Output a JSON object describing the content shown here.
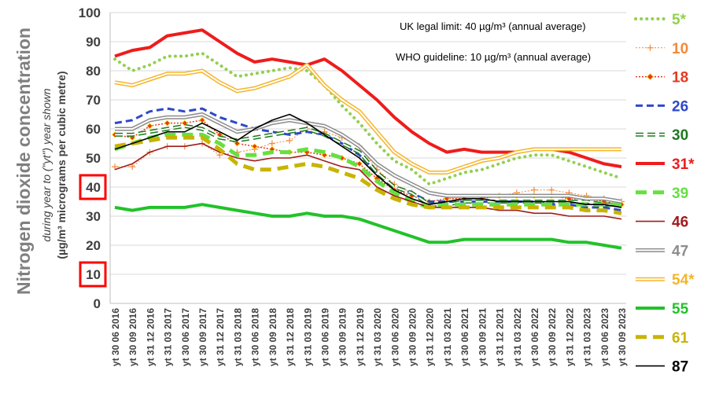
{
  "chart_data": {
    "type": "line",
    "ylabel_main": "Nitrogen dioxide concentration",
    "ylabel_sub1": "during year to (\"yt\") year shown",
    "ylabel_sub2": "(µg/m³ micrograms per cubic metre)",
    "annotation_uk": "UK legal limit:  40 µg/m³ (annual average)",
    "annotation_who": "WHO guideline:  10 µg/m³ (annual average)",
    "ylim": [
      0,
      100
    ],
    "yticks": [
      0,
      10,
      20,
      30,
      40,
      50,
      60,
      70,
      80,
      90,
      100
    ],
    "highlighted_yticks": [
      10,
      40
    ],
    "grid": true,
    "legend_position": "right",
    "x": [
      "yt 30 06 2016",
      "yt 30 09 2016",
      "yt 31 12 2016",
      "yt 31 03 2017",
      "yt 30 06 2017",
      "yt 30 09 2017",
      "yt 31 12 2017",
      "yt 31 03 2018",
      "yt 30 06 2018",
      "yt 30 09 2018",
      "yt 31 12 2018",
      "yt 31 03 2019",
      "yt 30 06 2019",
      "yt 30 09 2019",
      "yt 31 12 2019",
      "yt 31 03 2020",
      "yt 30 06 2020",
      "yt 30 09 2020",
      "yt 31 12 2020",
      "yt 31 03 2021",
      "yt 30 06 2021",
      "yt 30 09 2021",
      "yt 31 12 2021",
      "yt 31 03 2022",
      "yt 30 06 2022",
      "yt 30 09 2022",
      "yt 31 12 2022",
      "yt 31 03 2023",
      "yt 30 06 2023",
      "yt 30 09 2023"
    ],
    "series": [
      {
        "name": "5*",
        "color": "#92d050",
        "style": "dotted",
        "values": [
          84,
          80,
          82,
          85,
          85,
          86,
          82,
          78,
          79,
          80,
          81,
          80,
          75,
          68,
          62,
          55,
          49,
          46,
          41,
          43,
          45,
          46,
          48,
          50,
          51,
          51,
          49,
          47,
          45,
          43
        ]
      },
      {
        "name": "10",
        "color": "#f08a3c",
        "style": "plus",
        "values": [
          47,
          47,
          52,
          54,
          54,
          55,
          51,
          52,
          53,
          55,
          56,
          60,
          59,
          57,
          54,
          46,
          41,
          38,
          35,
          36,
          36,
          36,
          37,
          38,
          39,
          39,
          38,
          37,
          36,
          35
        ]
      },
      {
        "name": "18",
        "color": "#e53a1e",
        "style": "diamond",
        "values": [
          58,
          57,
          61,
          62,
          62,
          63,
          58,
          55,
          54,
          53,
          52,
          52,
          51,
          50,
          48,
          43,
          39,
          37,
          35,
          36,
          36,
          36,
          37,
          37,
          37,
          37,
          36,
          36,
          35,
          34
        ]
      },
      {
        "name": "26",
        "color": "#2f48c9",
        "style": "dashed",
        "values": [
          62,
          63,
          66,
          67,
          66,
          67,
          64,
          62,
          60,
          59,
          58,
          59,
          58,
          55,
          51,
          45,
          40,
          38,
          35,
          35,
          35,
          35,
          35,
          35,
          35,
          34,
          34,
          33,
          33,
          32
        ]
      },
      {
        "name": "30",
        "color": "#1e7a1e",
        "style": "outline-dash",
        "values": [
          58,
          58,
          59,
          60,
          61,
          60,
          57,
          56,
          57,
          58,
          59,
          60,
          58,
          55,
          52,
          45,
          40,
          38,
          34,
          34,
          35,
          35,
          35,
          35,
          35,
          35,
          35,
          35,
          34,
          34
        ]
      },
      {
        "name": "31*",
        "color": "#ee1c1c",
        "style": "thick",
        "values": [
          85,
          87,
          88,
          92,
          93,
          94,
          90,
          86,
          83,
          84,
          83,
          82,
          84,
          80,
          75,
          70,
          64,
          59,
          55,
          52,
          53,
          52,
          52,
          52,
          53,
          53,
          52,
          50,
          48,
          47
        ]
      },
      {
        "name": "39",
        "color": "#66e040",
        "style": "thick-dash",
        "values": [
          53,
          55,
          57,
          58,
          58,
          58,
          55,
          51,
          51,
          52,
          52,
          53,
          52,
          50,
          47,
          42,
          38,
          35,
          33,
          34,
          34,
          34,
          34,
          34,
          34,
          34,
          34,
          34,
          34,
          34
        ]
      },
      {
        "name": "46",
        "color": "#a01c1c",
        "style": "solid",
        "values": [
          46,
          48,
          52,
          54,
          54,
          55,
          52,
          50,
          49,
          50,
          50,
          51,
          49,
          47,
          46,
          40,
          37,
          35,
          33,
          33,
          33,
          33,
          32,
          32,
          31,
          31,
          30,
          30,
          30,
          29
        ]
      },
      {
        "name": "47",
        "color": "#8c8c8c",
        "style": "outline",
        "values": [
          60,
          60,
          63,
          64,
          64,
          65,
          62,
          59,
          60,
          62,
          63,
          62,
          61,
          58,
          54,
          48,
          44,
          41,
          38,
          37,
          37,
          37,
          37,
          37,
          37,
          37,
          37,
          36,
          36,
          35
        ]
      },
      {
        "name": "54*",
        "color": "#f5b52a",
        "style": "outline",
        "values": [
          76,
          75,
          77,
          79,
          79,
          80,
          76,
          73,
          74,
          76,
          78,
          82,
          75,
          70,
          66,
          59,
          52,
          48,
          45,
          45,
          47,
          49,
          50,
          52,
          53,
          53,
          53,
          53,
          53,
          53
        ]
      },
      {
        "name": "55",
        "color": "#22c22a",
        "style": "thick",
        "values": [
          33,
          32,
          33,
          33,
          33,
          34,
          33,
          32,
          31,
          30,
          30,
          31,
          30,
          30,
          29,
          27,
          25,
          23,
          21,
          21,
          22,
          22,
          22,
          22,
          22,
          22,
          21,
          21,
          20,
          19
        ]
      },
      {
        "name": "61",
        "color": "#c8b400",
        "style": "thick-dash",
        "values": [
          54,
          55,
          56,
          57,
          57,
          57,
          53,
          48,
          46,
          46,
          47,
          48,
          47,
          45,
          43,
          39,
          36,
          34,
          33,
          33,
          33,
          33,
          33,
          33,
          33,
          33,
          33,
          32,
          32,
          31
        ]
      },
      {
        "name": "87",
        "color": "#000000",
        "style": "solid",
        "values": [
          53,
          55,
          57,
          59,
          59,
          62,
          59,
          56,
          60,
          63,
          65,
          62,
          58,
          54,
          50,
          44,
          39,
          36,
          34,
          35,
          36,
          36,
          35,
          35,
          35,
          35,
          35,
          34,
          34,
          33
        ]
      }
    ]
  }
}
